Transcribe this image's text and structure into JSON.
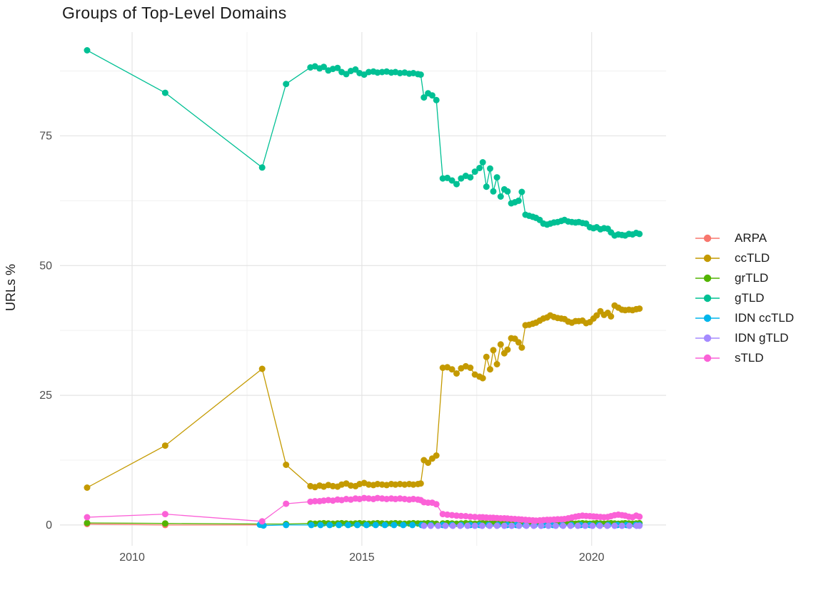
{
  "title": "Groups of Top-Level Domains",
  "y_axis_title": "URLs %",
  "colors": {
    "background": "#FFFFFF",
    "grid_major": "#E4E4E4",
    "grid_minor": "#F0F0F0",
    "axis_text": "#4D4D4D",
    "title_text": "#1A1A1A"
  },
  "legend": {
    "items": [
      {
        "label": "ARPA",
        "color": "#F8766D"
      },
      {
        "label": "ccTLD",
        "color": "#C49A00"
      },
      {
        "label": "grTLD",
        "color": "#53B400"
      },
      {
        "label": "gTLD",
        "color": "#00C094"
      },
      {
        "label": "IDN ccTLD",
        "color": "#00B6EB"
      },
      {
        "label": "IDN gTLD",
        "color": "#A58AFF"
      },
      {
        "label": "sTLD",
        "color": "#FB61D7"
      }
    ]
  },
  "chart_data": {
    "type": "line",
    "title": "Groups of Top-Level Domains",
    "xlabel": "",
    "ylabel": "URLs %",
    "xlim": [
      2008.43,
      2021.62
    ],
    "ylim": [
      -4.0,
      95.0
    ],
    "x_ticks": [
      2010,
      2015,
      2020
    ],
    "x_minor_ticks": [
      2012.5,
      2017.5
    ],
    "y_ticks": [
      0,
      25,
      50,
      75
    ],
    "y_minor_ticks": [
      12.5,
      37.5,
      62.5,
      87.5
    ],
    "grid": true,
    "legend_position": "right",
    "point_radius": 4.5,
    "line_width": 1.3,
    "x_common": [
      2009.02,
      2010.72,
      2012.83,
      2013.35,
      2013.88,
      2013.98,
      2014.08,
      2014.17,
      2014.27,
      2014.37,
      2014.47,
      2014.56,
      2014.66,
      2014.76,
      2014.86,
      2014.95,
      2015.05,
      2015.15,
      2015.25,
      2015.34,
      2015.44,
      2015.54,
      2015.64,
      2015.73,
      2015.83,
      2015.93,
      2016.03,
      2016.12,
      2016.22,
      2016.28,
      2016.35,
      2016.44,
      2016.53,
      2016.62,
      2016.76,
      2016.86,
      2016.96,
      2017.06,
      2017.16,
      2017.26,
      2017.36,
      2017.46,
      2017.56,
      2017.63,
      2017.71,
      2017.79,
      2017.86,
      2017.94,
      2018.02,
      2018.1,
      2018.17,
      2018.25,
      2018.33,
      2018.41,
      2018.48,
      2018.56,
      2018.64,
      2018.72,
      2018.79,
      2018.87,
      2018.95,
      2019.03,
      2019.1,
      2019.18,
      2019.26,
      2019.34,
      2019.41,
      2019.49,
      2019.57,
      2019.65,
      2019.72,
      2019.8,
      2019.88,
      2019.96,
      2020.04,
      2020.11,
      2020.19,
      2020.27,
      2020.35,
      2020.42,
      2020.5,
      2020.58,
      2020.66,
      2020.73,
      2020.81,
      2020.89,
      2020.97,
      2021.04
    ],
    "series": [
      {
        "name": "ARPA",
        "color": "#F8766D",
        "x": [
          2009.02,
          2010.72,
          2012.83
        ],
        "y": [
          0.2,
          0.0,
          0.0
        ]
      },
      {
        "name": "ccTLD",
        "color": "#C49A00",
        "x": "common",
        "y": [
          7.2,
          15.3,
          30.1,
          11.6,
          7.5,
          7.3,
          7.6,
          7.4,
          7.7,
          7.5,
          7.4,
          7.8,
          8.0,
          7.6,
          7.5,
          7.9,
          8.1,
          7.8,
          7.7,
          7.9,
          7.8,
          7.7,
          7.9,
          7.8,
          7.9,
          7.8,
          7.9,
          7.8,
          7.9,
          8.0,
          12.5,
          12.0,
          12.8,
          13.4,
          30.3,
          30.4,
          30.0,
          29.2,
          30.2,
          30.6,
          30.3,
          29.0,
          28.6,
          28.3,
          32.4,
          30.0,
          33.7,
          31.0,
          34.8,
          33.1,
          33.8,
          36.0,
          35.9,
          35.2,
          34.2,
          38.5,
          38.6,
          38.8,
          39.0,
          39.4,
          39.8,
          40.0,
          40.4,
          40.1,
          39.9,
          39.8,
          39.7,
          39.2,
          39.0,
          39.3,
          39.3,
          39.4,
          38.9,
          39.1,
          39.8,
          40.4,
          41.2,
          40.5,
          40.9,
          40.2,
          42.3,
          41.9,
          41.5,
          41.4,
          41.5,
          41.4,
          41.6,
          41.7
        ]
      },
      {
        "name": "grTLD",
        "color": "#53B400",
        "x": "common",
        "y": [
          0.4,
          0.3,
          0.2,
          0.2,
          0.3,
          0.25,
          0.3,
          0.35,
          0.3,
          0.25,
          0.3,
          0.35,
          0.3,
          0.25,
          0.3,
          0.35,
          0.3,
          0.25,
          0.3,
          0.35,
          0.3,
          0.25,
          0.3,
          0.35,
          0.3,
          0.25,
          0.3,
          0.35,
          0.3,
          0.25,
          0.3,
          0.35,
          0.3,
          0.25,
          0.3,
          0.35,
          0.3,
          0.25,
          0.3,
          0.35,
          0.3,
          0.25,
          0.3,
          0.35,
          0.3,
          0.25,
          0.3,
          0.35,
          0.3,
          0.25,
          0.3,
          0.35,
          0.3,
          0.25,
          0.3,
          0.35,
          0.3,
          0.25,
          0.3,
          0.35,
          0.3,
          0.25,
          0.3,
          0.35,
          0.3,
          0.25,
          0.3,
          0.35,
          0.3,
          0.25,
          0.3,
          0.35,
          0.3,
          0.25,
          0.3,
          0.35,
          0.3,
          0.25,
          0.3,
          0.35,
          0.3,
          0.25,
          0.3,
          0.35,
          0.3,
          0.25,
          0.3,
          0.35
        ]
      },
      {
        "name": "gTLD",
        "color": "#00C094",
        "x": "common",
        "y": [
          91.5,
          83.3,
          68.9,
          85.0,
          88.2,
          88.4,
          88.0,
          88.3,
          87.6,
          87.9,
          88.1,
          87.3,
          86.9,
          87.5,
          87.8,
          87.1,
          86.8,
          87.3,
          87.4,
          87.2,
          87.3,
          87.4,
          87.2,
          87.3,
          87.1,
          87.2,
          87.0,
          87.1,
          86.9,
          86.8,
          82.4,
          83.2,
          82.8,
          81.9,
          66.8,
          66.9,
          66.4,
          65.7,
          66.8,
          67.3,
          67.0,
          68.1,
          68.8,
          69.9,
          65.2,
          68.7,
          64.3,
          67.0,
          63.3,
          64.7,
          64.3,
          62.0,
          62.2,
          62.5,
          64.2,
          59.8,
          59.6,
          59.4,
          59.2,
          58.8,
          58.1,
          57.9,
          58.1,
          58.3,
          58.4,
          58.6,
          58.8,
          58.5,
          58.4,
          58.3,
          58.4,
          58.2,
          58.1,
          57.4,
          57.2,
          57.4,
          57.0,
          57.2,
          57.1,
          56.4,
          55.8,
          56.0,
          55.9,
          55.8,
          56.1,
          56.0,
          56.3,
          56.1
        ]
      },
      {
        "name": "IDN ccTLD",
        "color": "#00B6EB",
        "x": [
          2012.78,
          2012.86,
          2013.35,
          2013.9,
          2014.1,
          2014.3,
          2014.5,
          2014.7,
          2014.9,
          2015.1,
          2015.3,
          2015.5,
          2015.7,
          2015.9,
          2016.1,
          2016.3,
          2016.5,
          2016.76,
          2016.96,
          2017.16,
          2017.36,
          2017.56,
          2017.76,
          2017.96,
          2018.16,
          2018.36,
          2018.56,
          2018.76,
          2018.96,
          2019.16,
          2019.36,
          2019.56,
          2019.76,
          2019.96,
          2020.16,
          2020.36,
          2020.56,
          2020.76,
          2020.96,
          2021.04
        ],
        "y": [
          0.05,
          -0.1,
          0.0,
          0.0,
          0.0,
          0.0,
          0.0,
          0.0,
          0.0,
          0.0,
          0.0,
          0.0,
          0.0,
          0.0,
          0.0,
          0.0,
          0.0,
          0.0,
          0.0,
          0.0,
          0.0,
          0.0,
          0.0,
          0.0,
          0.0,
          0.0,
          0.0,
          0.0,
          0.0,
          0.0,
          0.0,
          0.0,
          0.0,
          0.0,
          0.0,
          0.0,
          0.0,
          0.0,
          0.0,
          0.0
        ]
      },
      {
        "name": "IDN gTLD",
        "color": "#A58AFF",
        "x": [
          2016.35,
          2016.5,
          2016.66,
          2016.82,
          2016.98,
          2017.14,
          2017.3,
          2017.46,
          2017.62,
          2017.78,
          2017.94,
          2018.1,
          2018.26,
          2018.42,
          2018.58,
          2018.74,
          2018.9,
          2019.06,
          2019.22,
          2019.38,
          2019.54,
          2019.7,
          2019.86,
          2020.02,
          2020.18,
          2020.34,
          2020.5,
          2020.66,
          2020.82,
          2020.98,
          2021.04
        ],
        "y": [
          -0.15,
          -0.15,
          -0.15,
          -0.15,
          -0.15,
          -0.15,
          -0.15,
          -0.15,
          -0.15,
          -0.15,
          -0.15,
          -0.15,
          -0.15,
          -0.15,
          -0.15,
          -0.15,
          -0.15,
          -0.15,
          -0.15,
          -0.15,
          -0.15,
          -0.15,
          -0.15,
          -0.15,
          -0.15,
          -0.15,
          -0.15,
          -0.15,
          -0.15,
          -0.15,
          -0.15
        ]
      },
      {
        "name": "sTLD",
        "color": "#FB61D7",
        "x": "common",
        "y": [
          1.5,
          2.1,
          0.7,
          4.1,
          4.5,
          4.6,
          4.6,
          4.7,
          4.8,
          4.7,
          4.9,
          4.8,
          5.0,
          4.9,
          5.1,
          5.0,
          5.2,
          5.1,
          5.0,
          5.2,
          5.1,
          5.0,
          5.1,
          5.0,
          5.1,
          5.0,
          4.9,
          5.0,
          4.9,
          4.8,
          4.4,
          4.3,
          4.3,
          4.0,
          2.1,
          2.0,
          1.9,
          1.8,
          1.75,
          1.7,
          1.6,
          1.55,
          1.5,
          1.5,
          1.45,
          1.4,
          1.4,
          1.35,
          1.3,
          1.3,
          1.25,
          1.2,
          1.15,
          1.1,
          1.05,
          1.0,
          0.95,
          0.9,
          0.85,
          0.9,
          0.95,
          1.0,
          1.0,
          1.05,
          1.1,
          1.1,
          1.15,
          1.3,
          1.45,
          1.6,
          1.7,
          1.8,
          1.75,
          1.7,
          1.65,
          1.6,
          1.55,
          1.5,
          1.55,
          1.7,
          1.9,
          2.0,
          1.9,
          1.8,
          1.6,
          1.5,
          1.8,
          1.6
        ]
      }
    ]
  }
}
